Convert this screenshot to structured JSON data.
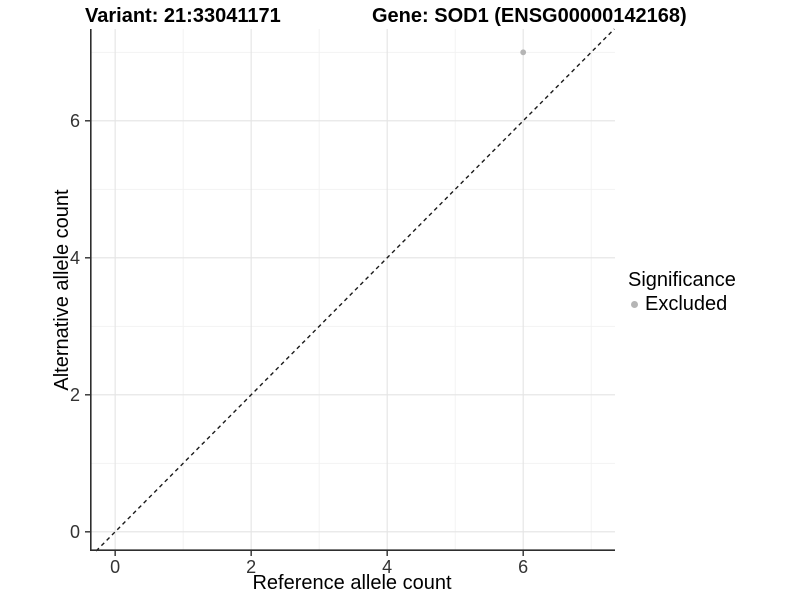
{
  "chart_data": {
    "type": "scatter",
    "title": {
      "left": "Variant: 21:33041171",
      "right": "Gene: SOD1 (ENSG00000142168)"
    },
    "xlabel": "Reference allele count",
    "ylabel": "Alternative allele count",
    "xlim": [
      -0.37,
      7.35
    ],
    "ylim": [
      -0.28,
      7.34
    ],
    "x_ticks": [
      0,
      2,
      4,
      6
    ],
    "y_ticks": [
      0,
      2,
      4,
      6
    ],
    "x_minor_ticks": [
      1,
      3,
      5,
      7
    ],
    "y_minor_ticks": [
      1,
      3,
      5,
      7
    ],
    "grid": "major+minor",
    "reference_line": {
      "type": "identity y=x",
      "style": "dashed",
      "color": "#1a1a1a"
    },
    "series": [
      {
        "name": "Excluded",
        "color": "#b5b5b5",
        "points": [
          {
            "x": 6,
            "y": 7
          }
        ]
      }
    ],
    "legend": {
      "title": "Significance",
      "position": "right",
      "items": [
        {
          "label": "Excluded",
          "color": "#b5b5b5"
        }
      ]
    }
  },
  "colors": {
    "background": "#ffffff",
    "grid_major": "#e4e4e4",
    "grid_minor": "#f1f1f1",
    "axis": "#2e2e2e",
    "tick_text": "#333333",
    "title_text": "#000000",
    "ref_line": "#1a1a1a"
  }
}
